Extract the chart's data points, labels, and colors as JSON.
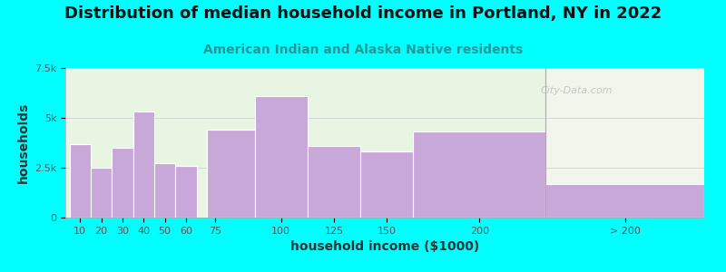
{
  "title": "Distribution of median household income in Portland, NY in 2022",
  "subtitle": "American Indian and Alaska Native residents",
  "xlabel": "household income ($1000)",
  "ylabel": "households",
  "background_outer": "#00FFFF",
  "background_inner": "#e8f5e2",
  "background_right": "#f2f5ec",
  "bar_color": "#c8a8d8",
  "bar_edge_color": "#c8a8d8",
  "values": [
    3700,
    2500,
    3500,
    5300,
    2750,
    2600,
    4400,
    6100,
    3600,
    3300,
    4300,
    1700
  ],
  "bar_lefts": [
    0,
    10,
    20,
    30,
    40,
    50,
    65,
    87.5,
    112.5,
    137.5,
    162.5,
    225
  ],
  "bar_widths": [
    10,
    10,
    10,
    10,
    10,
    10,
    22.5,
    25,
    25,
    25,
    62.5,
    75
  ],
  "xtick_positions": [
    5,
    15,
    25,
    35,
    45,
    55,
    68.75,
    100,
    125,
    150,
    193.75,
    262.5
  ],
  "xtick_labels": [
    "10",
    "20",
    "30",
    "40",
    "50",
    "60",
    "75",
    "100",
    "125",
    "150",
    "200",
    "> 200"
  ],
  "ylim": [
    0,
    7500
  ],
  "yticks": [
    0,
    2500,
    5000,
    7500
  ],
  "ytick_labels": [
    "0",
    "2.5k",
    "5k",
    "7.5k"
  ],
  "xlim_left": -2,
  "xlim_right": 300,
  "divider_x": 225,
  "title_fontsize": 13,
  "subtitle_fontsize": 10,
  "axis_label_fontsize": 10,
  "tick_fontsize": 8,
  "watermark_text": "City-Data.com"
}
